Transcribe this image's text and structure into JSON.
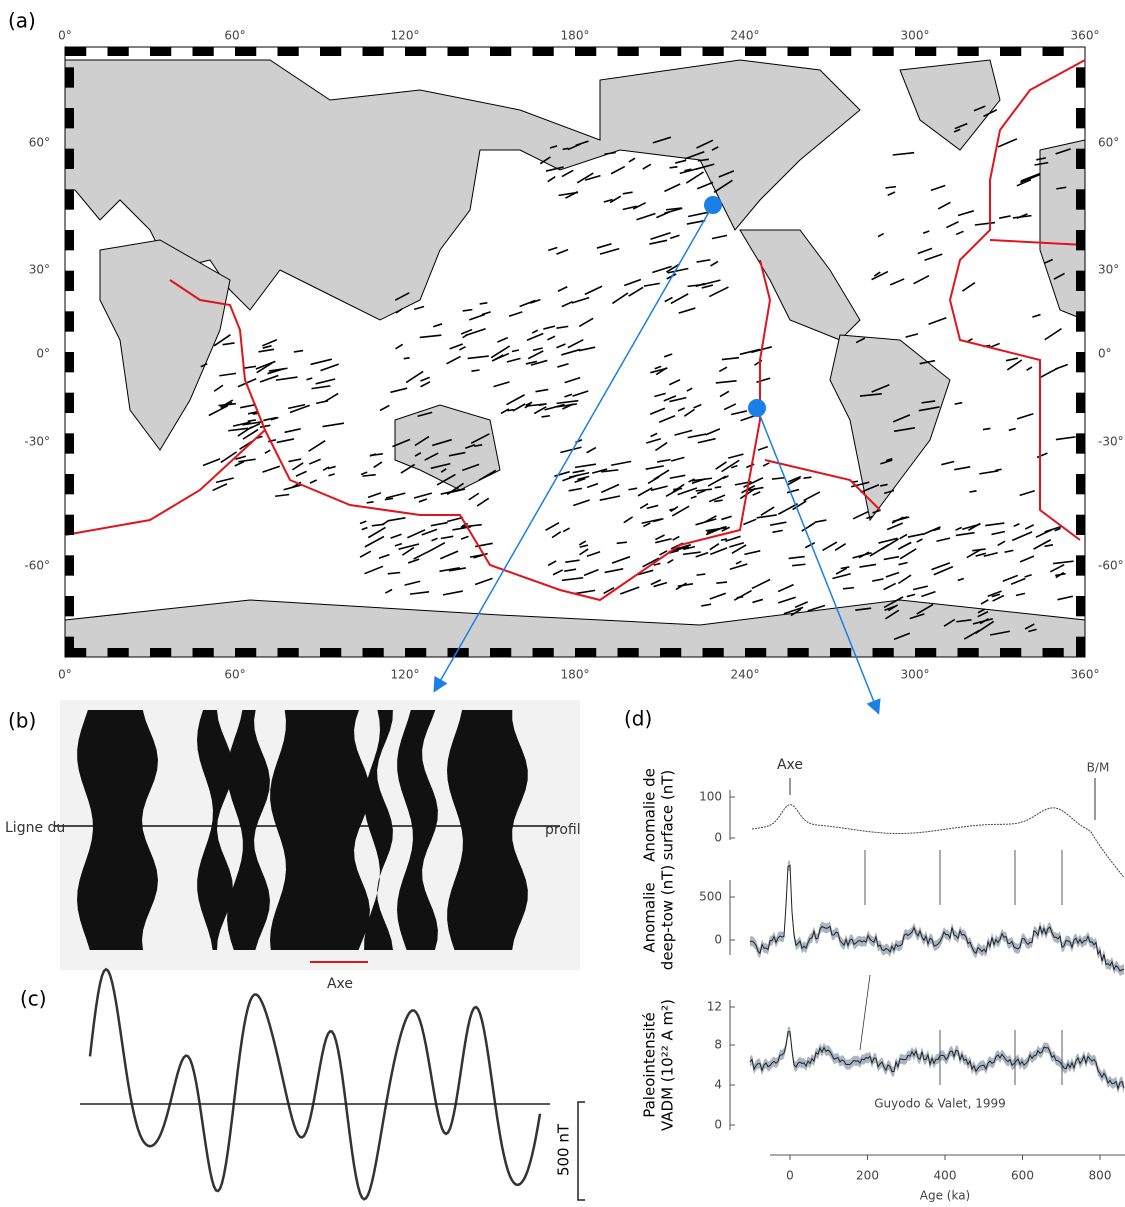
{
  "panel_a": {
    "label": "(a)",
    "lon_ticks": [
      "0°",
      "60°",
      "120°",
      "180°",
      "240°",
      "300°",
      "360°"
    ],
    "lat_ticks": [
      "60°",
      "30°",
      "0°",
      "-30°",
      "-60°"
    ]
  },
  "panel_b": {
    "label": "(b)",
    "line_left": "Ligne du",
    "line_right": "profil",
    "axis_label": "Axe"
  },
  "panel_c": {
    "label": "(c)",
    "scale": "500 nT"
  },
  "panel_d": {
    "label": "(d)",
    "surface": {
      "ylabel": [
        "Anomalie de",
        "surface (nT)"
      ],
      "yticks": [
        "100",
        "0"
      ],
      "annotations": [
        "Axe",
        "B/M"
      ]
    },
    "deeptow": {
      "ylabel": [
        "Anomalie",
        "deep-tow (nT)"
      ],
      "yticks": [
        "500",
        "0"
      ]
    },
    "paleo": {
      "ylabel": [
        "Paleointensité",
        "VADM (10²² A m²)"
      ],
      "yticks": [
        "12",
        "8",
        "4",
        "0"
      ],
      "source": "Guyodo & Valet, 1999"
    },
    "xticks": [
      "0",
      "200",
      "400",
      "600",
      "800"
    ],
    "xlabel": "Age (ka)"
  }
}
